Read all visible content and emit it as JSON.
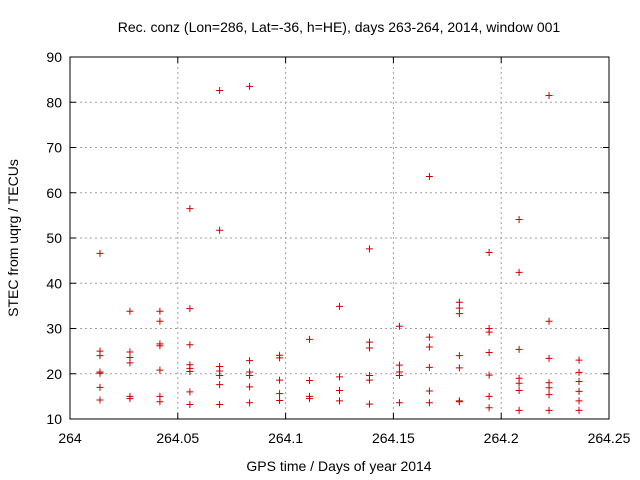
{
  "chart_data": {
    "type": "scatter",
    "title": "Rec. conz (Lon=286, Lat=-36, h=HE), days 263-264, 2014, window 001",
    "xlabel": "GPS time / Days of year 2014",
    "ylabel": "STEC from uqrg / TECUs",
    "xlim": [
      264,
      264.25
    ],
    "ylim": [
      10,
      90
    ],
    "xticks": [
      "264",
      "264.05",
      "264.1",
      "264.15",
      "264.2",
      "264.25"
    ],
    "xtick_values": [
      264,
      264.05,
      264.1,
      264.15,
      264.2,
      264.25
    ],
    "yticks": [
      "10",
      "20",
      "30",
      "40",
      "50",
      "60",
      "70",
      "80",
      "90"
    ],
    "ytick_values": [
      10,
      20,
      30,
      40,
      50,
      60,
      70,
      80,
      90
    ],
    "grid": true,
    "marker": "+",
    "color": "#cc0000",
    "series": [
      {
        "name": "STEC",
        "points": [
          [
            264.0139,
            46.6
          ],
          [
            264.0139,
            25.0
          ],
          [
            264.0139,
            24.0
          ],
          [
            264.0139,
            20.4
          ],
          [
            264.0139,
            20.1
          ],
          [
            264.0139,
            17.0
          ],
          [
            264.0139,
            14.2
          ],
          [
            264.0278,
            33.8
          ],
          [
            264.0278,
            24.8
          ],
          [
            264.0278,
            23.6
          ],
          [
            264.0278,
            22.4
          ],
          [
            264.0278,
            15.0
          ],
          [
            264.0278,
            14.5
          ],
          [
            264.0417,
            33.8
          ],
          [
            264.0417,
            31.6
          ],
          [
            264.0417,
            26.6
          ],
          [
            264.0417,
            26.2
          ],
          [
            264.0417,
            20.8
          ],
          [
            264.0417,
            15.0
          ],
          [
            264.0417,
            13.8
          ],
          [
            264.0556,
            56.5
          ],
          [
            264.0556,
            34.4
          ],
          [
            264.0556,
            26.4
          ],
          [
            264.0556,
            22.0
          ],
          [
            264.0556,
            21.2
          ],
          [
            264.0556,
            20.5
          ],
          [
            264.0556,
            16.0
          ],
          [
            264.0556,
            13.2
          ],
          [
            264.0694,
            82.6
          ],
          [
            264.0694,
            51.7
          ],
          [
            264.0694,
            21.6
          ],
          [
            264.0694,
            20.6
          ],
          [
            264.0694,
            19.6
          ],
          [
            264.0694,
            17.6
          ],
          [
            264.0694,
            13.2
          ],
          [
            264.0833,
            83.5
          ],
          [
            264.0833,
            22.9
          ],
          [
            264.0833,
            20.4
          ],
          [
            264.0833,
            19.6
          ],
          [
            264.0833,
            17.1
          ],
          [
            264.0833,
            13.6
          ],
          [
            264.0972,
            24.1
          ],
          [
            264.0972,
            23.5
          ],
          [
            264.0972,
            18.6
          ],
          [
            264.0972,
            15.6
          ],
          [
            264.0972,
            14.1
          ],
          [
            264.1111,
            27.6
          ],
          [
            264.1111,
            18.5
          ],
          [
            264.1111,
            15.0
          ],
          [
            264.1111,
            14.5
          ],
          [
            264.125,
            34.9
          ],
          [
            264.125,
            19.3
          ],
          [
            264.125,
            16.3
          ],
          [
            264.125,
            14.0
          ],
          [
            264.1389,
            47.6
          ],
          [
            264.1389,
            27.0
          ],
          [
            264.1389,
            25.7
          ],
          [
            264.1389,
            19.6
          ],
          [
            264.1389,
            18.6
          ],
          [
            264.1389,
            13.3
          ],
          [
            264.1528,
            30.5
          ],
          [
            264.1528,
            21.9
          ],
          [
            264.1528,
            20.4
          ],
          [
            264.1528,
            19.6
          ],
          [
            264.1528,
            13.6
          ],
          [
            264.1667,
            63.6
          ],
          [
            264.1667,
            28.1
          ],
          [
            264.1667,
            25.9
          ],
          [
            264.1667,
            21.4
          ],
          [
            264.1667,
            16.2
          ],
          [
            264.1667,
            13.6
          ],
          [
            264.1806,
            35.8
          ],
          [
            264.1806,
            34.5
          ],
          [
            264.1806,
            33.3
          ],
          [
            264.1806,
            24.0
          ],
          [
            264.1806,
            21.3
          ],
          [
            264.1806,
            14.0
          ],
          [
            264.1806,
            13.8
          ],
          [
            264.1944,
            46.8
          ],
          [
            264.1944,
            30.0
          ],
          [
            264.1944,
            29.2
          ],
          [
            264.1944,
            24.7
          ],
          [
            264.1944,
            19.7
          ],
          [
            264.1944,
            15.0
          ],
          [
            264.1944,
            12.5
          ],
          [
            264.2083,
            54.1
          ],
          [
            264.2083,
            42.4
          ],
          [
            264.2083,
            25.4
          ],
          [
            264.2083,
            19.0
          ],
          [
            264.2083,
            17.9
          ],
          [
            264.2083,
            16.3
          ],
          [
            264.2083,
            11.9
          ],
          [
            264.2222,
            81.5
          ],
          [
            264.2222,
            31.6
          ],
          [
            264.2222,
            23.4
          ],
          [
            264.2222,
            18.0
          ],
          [
            264.2222,
            16.9
          ],
          [
            264.2222,
            15.4
          ],
          [
            264.2222,
            11.9
          ],
          [
            264.2361,
            23.0
          ],
          [
            264.2361,
            20.3
          ],
          [
            264.2361,
            18.3
          ],
          [
            264.2361,
            16.1
          ],
          [
            264.2361,
            14.0
          ],
          [
            264.2361,
            11.9
          ]
        ]
      }
    ]
  }
}
